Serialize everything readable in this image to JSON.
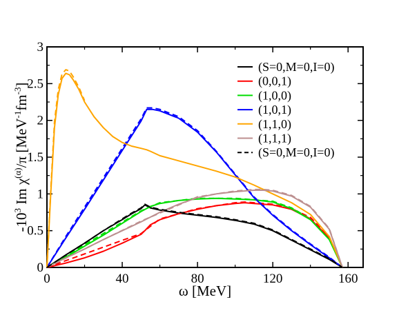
{
  "chart_data": {
    "type": "line",
    "title": "",
    "xlabel": "ω [MeV]",
    "ylabel": {
      "prefix": "-10",
      "prefix_sup": "3",
      "im": " Im ",
      "chi": "χ",
      "chi_sup": "(α)",
      "tail": "/π [MeV",
      "unit_sup1": "-1",
      "unit_mid": "fm",
      "unit_sup2": "-3",
      "close": "]"
    },
    "xlim": [
      0,
      168
    ],
    "ylim": [
      0,
      3
    ],
    "x_ticks": [
      0,
      40,
      80,
      120,
      160
    ],
    "x_tick_labels": [
      "0",
      "40",
      "80",
      "120",
      "160"
    ],
    "y_ticks": [
      0,
      0.5,
      1,
      1.5,
      2,
      2.5,
      3
    ],
    "y_tick_labels": [
      "0",
      "0.5",
      "1",
      "1.5",
      "2",
      "2.5",
      "3"
    ],
    "grid": false,
    "legend_position": "top-right",
    "series": [
      {
        "name": "(S=0,M=0,I=0)",
        "color": "#000000",
        "dashed": false,
        "x": [
          0,
          10,
          20,
          30,
          40,
          45,
          50,
          52,
          55,
          60,
          70,
          80,
          90,
          100,
          110,
          120,
          130,
          140,
          150,
          157
        ],
        "y": [
          0,
          0.17,
          0.33,
          0.5,
          0.65,
          0.73,
          0.8,
          0.85,
          0.81,
          0.78,
          0.74,
          0.71,
          0.68,
          0.64,
          0.59,
          0.5,
          0.37,
          0.24,
          0.11,
          0
        ]
      },
      {
        "name": "(0,0,1)",
        "color": "#ff0000",
        "dashed": false,
        "x": [
          0,
          10,
          20,
          30,
          40,
          50,
          52,
          55,
          60,
          70,
          80,
          90,
          100,
          105,
          110,
          120,
          130,
          140,
          150,
          157
        ],
        "y": [
          0,
          0.06,
          0.13,
          0.22,
          0.33,
          0.45,
          0.5,
          0.58,
          0.65,
          0.73,
          0.79,
          0.84,
          0.87,
          0.88,
          0.87,
          0.85,
          0.79,
          0.66,
          0.4,
          0
        ]
      },
      {
        "name": "(1,0,0)",
        "color": "#00dd00",
        "dashed": false,
        "x": [
          0,
          10,
          20,
          30,
          40,
          50,
          55,
          60,
          70,
          80,
          90,
          100,
          110,
          120,
          130,
          140,
          150,
          157
        ],
        "y": [
          0,
          0.14,
          0.29,
          0.44,
          0.6,
          0.76,
          0.83,
          0.87,
          0.91,
          0.93,
          0.94,
          0.93,
          0.92,
          0.89,
          0.8,
          0.65,
          0.38,
          0
        ]
      },
      {
        "name": "(1,0,1)",
        "color": "#0000ff",
        "dashed": false,
        "x": [
          0,
          10,
          20,
          30,
          40,
          50,
          53,
          56,
          60,
          70,
          80,
          90,
          100,
          110,
          120,
          130,
          140,
          150,
          157
        ],
        "y": [
          0,
          0.4,
          0.79,
          1.19,
          1.59,
          1.99,
          2.15,
          2.15,
          2.13,
          2.03,
          1.84,
          1.57,
          1.26,
          0.95,
          0.71,
          0.5,
          0.31,
          0.13,
          0
        ]
      },
      {
        "name": "(1,1,0)",
        "color": "#ffa500",
        "dashed": false,
        "x": [
          0,
          2,
          4,
          6,
          8,
          10,
          12,
          14,
          17,
          20,
          25,
          30,
          35,
          40,
          45,
          50,
          53,
          55,
          60,
          70,
          80,
          90,
          100,
          110,
          120,
          130,
          140,
          150,
          157
        ],
        "y": [
          0,
          1.0,
          1.9,
          2.35,
          2.57,
          2.64,
          2.62,
          2.55,
          2.42,
          2.25,
          2.05,
          1.9,
          1.78,
          1.7,
          1.65,
          1.62,
          1.6,
          1.58,
          1.52,
          1.45,
          1.38,
          1.31,
          1.23,
          1.12,
          1.0,
          0.88,
          0.72,
          0.42,
          0
        ]
      },
      {
        "name": "(1,1,1)",
        "color": "#bc8f8f",
        "dashed": false,
        "x": [
          0,
          10,
          20,
          30,
          40,
          50,
          60,
          70,
          80,
          90,
          100,
          110,
          115,
          120,
          130,
          140,
          150,
          157
        ],
        "y": [
          0,
          0.13,
          0.25,
          0.38,
          0.5,
          0.62,
          0.75,
          0.86,
          0.95,
          1.0,
          1.03,
          1.05,
          1.05,
          1.04,
          0.97,
          0.82,
          0.52,
          0
        ]
      },
      {
        "name": "(S=0,M=0,I=0)",
        "color": "#000000",
        "dashed": true,
        "x": [
          0,
          10,
          20,
          30,
          40,
          45,
          50,
          52,
          55,
          60,
          70,
          80,
          90,
          100,
          110,
          120,
          130,
          140,
          150,
          157
        ],
        "y": [
          0,
          0.17,
          0.33,
          0.5,
          0.66,
          0.74,
          0.81,
          0.86,
          0.82,
          0.79,
          0.75,
          0.72,
          0.69,
          0.65,
          0.6,
          0.51,
          0.38,
          0.25,
          0.12,
          0
        ]
      }
    ],
    "dashed_companions": [
      {
        "color": "#ff0000",
        "x": [
          0,
          50,
          60,
          80,
          100,
          105,
          110,
          120,
          130,
          140,
          150,
          157
        ],
        "y": [
          0,
          0.46,
          0.66,
          0.8,
          0.88,
          0.89,
          0.88,
          0.86,
          0.8,
          0.68,
          0.42,
          0
        ]
      },
      {
        "color": "#00dd00",
        "x": [
          0,
          50,
          60,
          80,
          100,
          120,
          130,
          140,
          150,
          157
        ],
        "y": [
          0,
          0.77,
          0.88,
          0.94,
          0.94,
          0.9,
          0.81,
          0.66,
          0.39,
          0
        ]
      },
      {
        "color": "#0000ff",
        "x": [
          0,
          10,
          20,
          30,
          40,
          50,
          53,
          56,
          60,
          70,
          80,
          90,
          100,
          110,
          120,
          130,
          140,
          150,
          157
        ],
        "y": [
          0,
          0.42,
          0.82,
          1.22,
          1.62,
          2.02,
          2.17,
          2.17,
          2.15,
          2.05,
          1.86,
          1.58,
          1.27,
          0.96,
          0.72,
          0.51,
          0.32,
          0.14,
          0
        ]
      },
      {
        "color": "#ffa500",
        "x": [
          0,
          2,
          4,
          6,
          8,
          10,
          12,
          14,
          17,
          20
        ],
        "y": [
          0,
          1.05,
          1.98,
          2.42,
          2.63,
          2.69,
          2.67,
          2.59,
          2.45,
          2.27
        ]
      },
      {
        "color": "#bc8f8f",
        "x": [
          0,
          50,
          80,
          100,
          110,
          115,
          120,
          130,
          140,
          150,
          157
        ],
        "y": [
          0,
          0.63,
          0.96,
          1.04,
          1.06,
          1.06,
          1.05,
          0.98,
          0.83,
          0.53,
          0
        ]
      }
    ]
  }
}
